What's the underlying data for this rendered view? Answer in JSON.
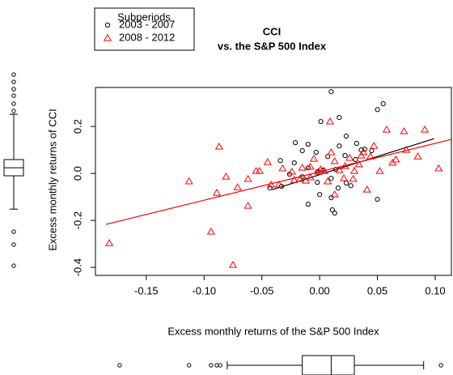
{
  "chart_data": {
    "type": "scatter",
    "title": "CCI",
    "subtitle": "vs. the S&P 500 Index",
    "xlabel": "Excess monthly returns of the S&P 500 Index",
    "ylabel": "Excess monthly returns of CCI",
    "legend_title": "Subperiods",
    "xlim": [
      -0.194,
      0.114
    ],
    "ylim": [
      -0.434,
      0.366
    ],
    "xticks": [
      {
        "value": -0.15,
        "label": "-0.15"
      },
      {
        "value": -0.1,
        "label": "-0.10"
      },
      {
        "value": -0.05,
        "label": "-0.05"
      },
      {
        "value": 0,
        "label": "0.00"
      },
      {
        "value": 0.05,
        "label": "0.05"
      },
      {
        "value": 0.1,
        "label": "0.10"
      }
    ],
    "yticks": [
      {
        "value": -0.4,
        "label": "-0.4"
      },
      {
        "value": -0.2,
        "label": "-0.2"
      },
      {
        "value": 0,
        "label": "0.0"
      },
      {
        "value": 0.2,
        "label": "0.2"
      }
    ],
    "series": [
      {
        "name": "2003 - 2007",
        "color": "#000000",
        "marker": "circle",
        "x": [
          0.01,
          0.055,
          0.05,
          0.017,
          0.001,
          0.023,
          -0.021,
          -0.01,
          0.032,
          0.017,
          -0.015,
          -0.003,
          0.036,
          0.039,
          0.045,
          0.007,
          0.022,
          0.031,
          -0.034,
          -0.022,
          -0.01,
          0.003,
          0.014,
          -0.026,
          -0.015,
          0.01,
          -0.002,
          0.023,
          -0.033,
          -0.043,
          0.016,
          0.027,
          0.011,
          0.01,
          -0.01,
          0.05,
          0.013,
          0.0,
          -0.002
        ],
        "y": [
          0.348,
          0.297,
          0.272,
          0.238,
          0.221,
          0.159,
          0.131,
          0.124,
          0.128,
          0.117,
          0.097,
          0.09,
          0.1,
          0.103,
          0.097,
          0.072,
          0.076,
          0.059,
          0.055,
          0.045,
          0.024,
          0.014,
          0.017,
          -0.003,
          -0.014,
          -0.021,
          -0.038,
          -0.041,
          -0.055,
          -0.062,
          -0.062,
          -0.052,
          -0.155,
          -0.103,
          -0.131,
          -0.11,
          -0.169,
          -0.09,
          0.007
        ],
        "fit": {
          "x": [
            -0.041,
            0.099
          ],
          "y": [
            -0.069,
            0.148
          ]
        }
      },
      {
        "name": "2008 - 2012",
        "color": "#ff0000",
        "marker": "triangle",
        "x": [
          -0.182,
          -0.113,
          -0.094,
          -0.087,
          -0.089,
          -0.081,
          -0.075,
          -0.071,
          -0.062,
          -0.062,
          -0.055,
          -0.052,
          -0.045,
          -0.042,
          -0.035,
          -0.032,
          -0.024,
          -0.022,
          -0.017,
          -0.015,
          -0.012,
          -0.008,
          -0.008,
          -0.005,
          -0.001,
          0.001,
          0.004,
          0.007,
          0.009,
          0.01,
          0.013,
          0.013,
          0.017,
          0.021,
          0.022,
          0.026,
          0.03,
          0.034,
          0.036,
          0.038,
          0.044,
          0.047,
          0.058,
          0.063,
          0.066,
          0.073,
          0.075,
          0.085,
          0.091,
          0.103,
          0.029,
          0.041,
          0.052
        ],
        "y": [
          -0.297,
          -0.034,
          -0.248,
          0.114,
          -0.083,
          -0.014,
          -0.39,
          -0.059,
          -0.138,
          -0.024,
          0.01,
          0.01,
          0.048,
          -0.048,
          -0.048,
          0.021,
          0.007,
          -0.028,
          -0.024,
          0.024,
          -0.031,
          0.028,
          -0.017,
          0.062,
          0.007,
          0.017,
          0.01,
          -0.034,
          0.221,
          0.09,
          0.052,
          -0.09,
          0.014,
          -0.021,
          0.031,
          0.066,
          0.01,
          0.038,
          0.076,
          0.09,
          0.072,
          0.117,
          0.186,
          0.045,
          0.059,
          0.179,
          0.1,
          0.072,
          0.186,
          0.021,
          -0.024,
          -0.069,
          0.01
        ],
        "fit": {
          "x": [
            -0.185,
            0.114
          ],
          "y": [
            -0.217,
            0.145
          ]
        }
      }
    ],
    "x_boxplot": {
      "whislo": -0.08,
      "q1": -0.015,
      "med": 0.01,
      "q3": 0.03,
      "whishi": 0.09,
      "fliers": [
        -0.173,
        -0.113,
        -0.094,
        -0.089,
        -0.086,
        0.105
      ]
    },
    "y_boxplot": {
      "whislo": -0.152,
      "q1": -0.01,
      "med": 0.024,
      "q3": 0.059,
      "whishi": 0.252,
      "fliers": [
        0.421,
        0.39,
        0.359,
        0.331,
        0.297,
        0.266,
        -0.248,
        -0.303,
        -0.393
      ]
    }
  }
}
